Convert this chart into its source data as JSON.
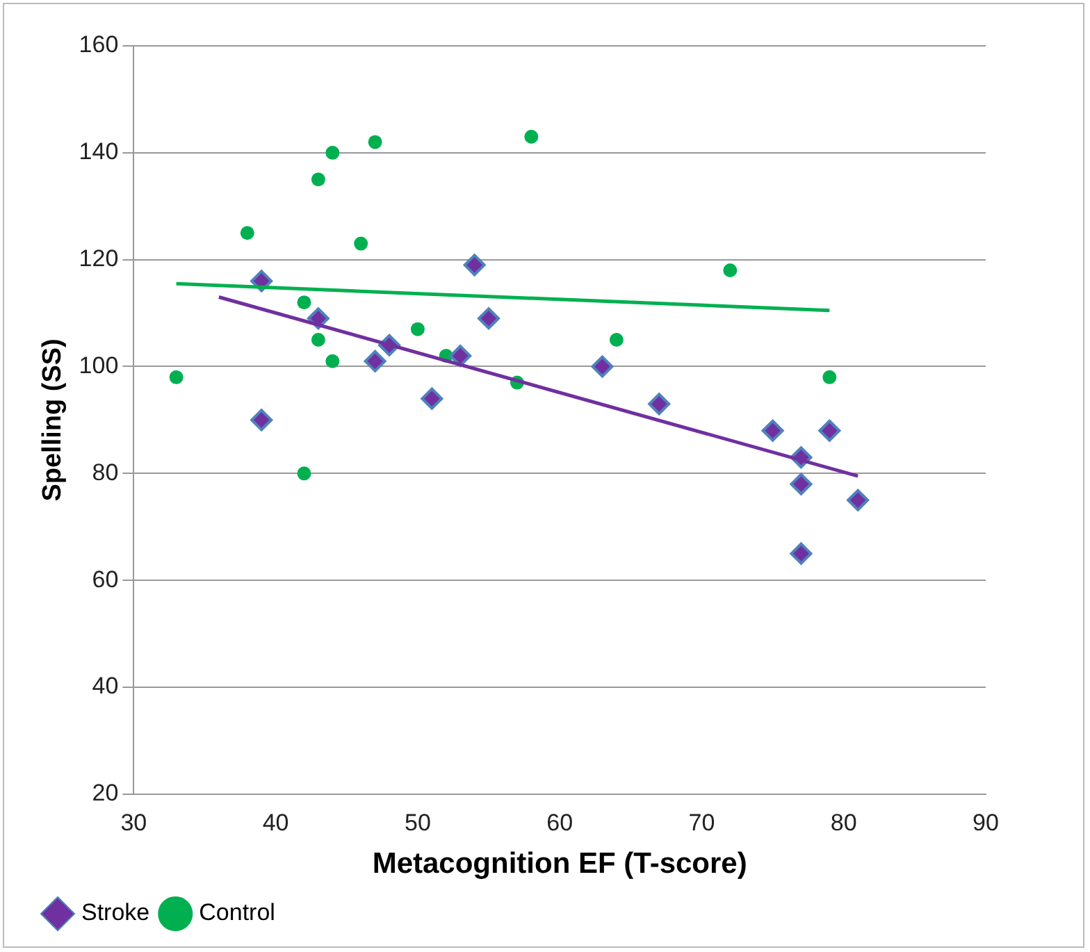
{
  "chart_data": {
    "type": "scatter",
    "xlabel": "Metacognition EF (T-score)",
    "ylabel": "Spelling (SS)",
    "xlim": [
      30,
      90
    ],
    "xticks": [
      30,
      40,
      50,
      60,
      70,
      80,
      90
    ],
    "ylim": [
      20,
      160
    ],
    "yticks": [
      20,
      40,
      60,
      80,
      100,
      120,
      140,
      160
    ],
    "grid": "y",
    "legend": "bottom left",
    "series": [
      {
        "name": "Stroke",
        "color": "#7030a0",
        "marker": "diamond",
        "x": [
          39,
          39,
          43,
          47,
          48,
          51,
          53,
          54,
          55,
          63,
          67,
          75,
          77,
          77,
          77,
          79,
          81
        ],
        "values": [
          116,
          90,
          109,
          101,
          104,
          94,
          102,
          119,
          109,
          100,
          93,
          88,
          83,
          78,
          65,
          88,
          75
        ]
      },
      {
        "name": "Control",
        "color": "#00b050",
        "marker": "circle",
        "x": [
          33,
          38,
          42,
          42,
          43,
          43,
          44,
          44,
          46,
          47,
          50,
          52,
          57,
          58,
          64,
          72,
          79
        ],
        "values": [
          98,
          125,
          112,
          80,
          135,
          105,
          140,
          101,
          123,
          142,
          107,
          102,
          97,
          143,
          105,
          118,
          98
        ]
      },
      {
        "type": "line",
        "color": "#7030a0",
        "marker": "none",
        "x": [
          36,
          81
        ],
        "values": [
          113,
          79.5
        ]
      },
      {
        "type": "line",
        "color": "#00b050",
        "marker": "none",
        "x": [
          33,
          79
        ],
        "values": [
          115.5,
          110.5
        ]
      }
    ]
  }
}
